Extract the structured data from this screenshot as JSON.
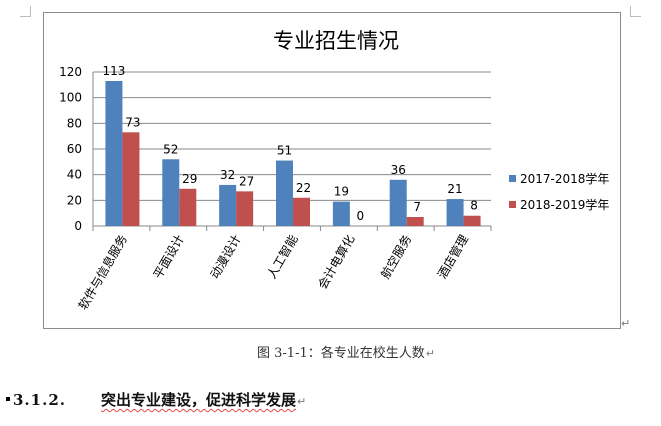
{
  "document": {
    "figure_caption": "图 3-1-1：各专业在校生人数",
    "paragraph_mark": "↵",
    "section": {
      "number": "3.1.2.",
      "title": "突出专业建设，促进科学发展"
    }
  },
  "chart_data": {
    "type": "bar",
    "title": "专业招生情况",
    "categories": [
      "软件与信息服务",
      "平面设计",
      "动漫设计",
      "人工智能",
      "会计电算化",
      "航空服务",
      "酒店管理"
    ],
    "series": [
      {
        "name": "2017-2018学年",
        "color": "#4f81bd",
        "values": [
          113,
          52,
          32,
          51,
          19,
          36,
          21
        ]
      },
      {
        "name": "2018-2019学年",
        "color": "#c0504d",
        "values": [
          73,
          29,
          27,
          22,
          0,
          7,
          8
        ]
      }
    ],
    "ylim": [
      0,
      120
    ],
    "yticks": [
      0,
      20,
      40,
      60,
      80,
      100,
      120
    ],
    "grid": true,
    "legend_position": "right",
    "data_labels": true
  }
}
